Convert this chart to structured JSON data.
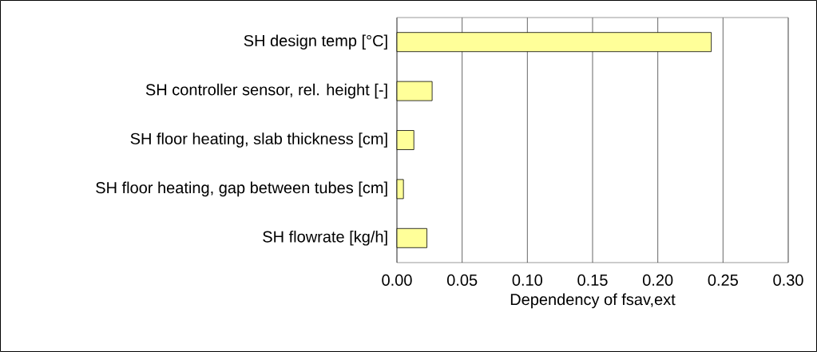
{
  "chart_data": {
    "type": "bar",
    "orientation": "horizontal",
    "categories": [
      "SH design temp [°C]",
      "SH controller sensor, rel. height [-]",
      "SH floor heating, slab thickness [cm]",
      "SH floor heating, gap between tubes [cm]",
      "SH flowrate [kg/h]"
    ],
    "values": [
      0.241,
      0.027,
      0.013,
      0.005,
      0.023
    ],
    "color": "#ffff99",
    "xlabel": "Dependency of fsav,ext",
    "xlim": [
      0,
      0.3
    ],
    "xticks": [
      {
        "value": 0,
        "label": "0.00"
      },
      {
        "value": 0.05,
        "label": "0.05"
      },
      {
        "value": 0.1,
        "label": "0.10"
      },
      {
        "value": 0.15,
        "label": "0.15"
      },
      {
        "value": 0.2,
        "label": "0.20"
      },
      {
        "value": 0.25,
        "label": "0.25"
      },
      {
        "value": 0.3,
        "label": "0.30"
      }
    ],
    "grid": "x"
  }
}
